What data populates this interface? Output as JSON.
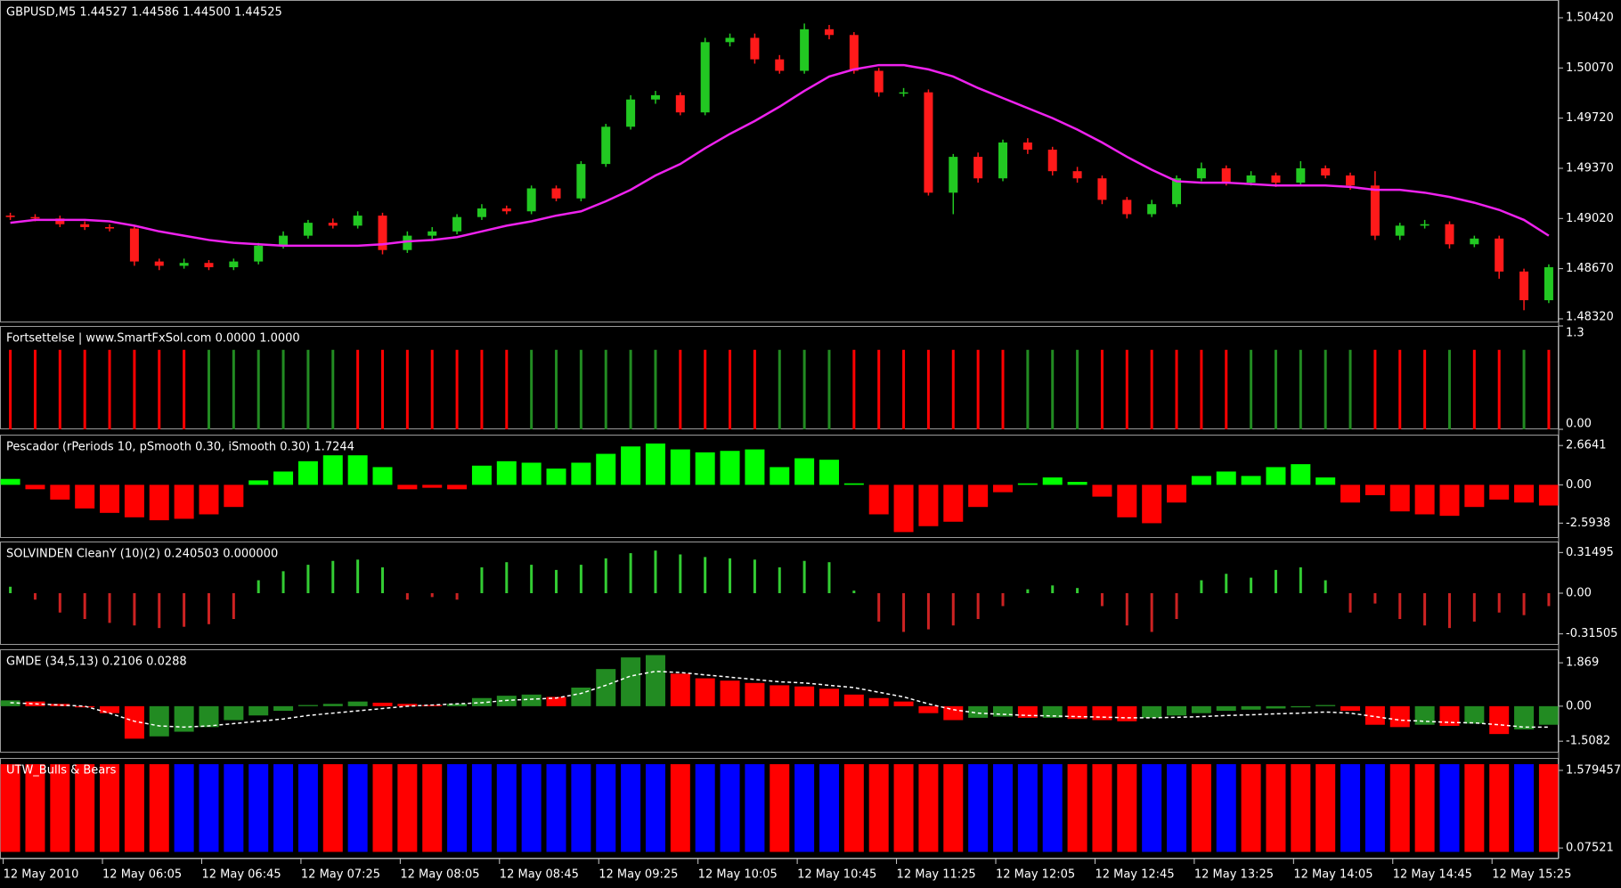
{
  "chart_data": [
    {
      "type": "candlestick",
      "title": "GBPUSD,M5  1.44527 1.44586 1.44500 1.44525",
      "up_color": "#22c822",
      "down_color": "#ff1a1a",
      "open": [
        1.4904,
        1.4903,
        1.4902,
        1.4898,
        1.4896,
        1.4895,
        1.4872,
        1.4869,
        1.4871,
        1.4868,
        1.4872,
        1.4883,
        1.489,
        1.4899,
        1.4897,
        1.4904,
        1.488,
        1.489,
        1.4893,
        1.4903,
        1.4909,
        1.4907,
        1.4923,
        1.4916,
        1.494,
        1.4966,
        1.4985,
        1.4988,
        1.4976,
        1.5025,
        1.5028,
        1.5013,
        1.5005,
        1.5034,
        1.503,
        1.5005,
        1.499,
        1.499,
        1.492,
        1.4945,
        1.493,
        1.4955,
        1.495,
        1.4935,
        1.493,
        1.4915,
        1.4905,
        1.4912,
        1.493,
        1.4937,
        1.4927,
        1.4932,
        1.4927,
        1.4937,
        1.4932,
        1.4925,
        1.489,
        1.4897,
        1.4898,
        1.4884,
        1.4888,
        1.4865,
        1.4845
      ],
      "high": [
        1.4906,
        1.4905,
        1.4904,
        1.49,
        1.4898,
        1.4897,
        1.4874,
        1.4874,
        1.4873,
        1.4874,
        1.4885,
        1.4893,
        1.4901,
        1.4902,
        1.4907,
        1.4906,
        1.4893,
        1.4896,
        1.4905,
        1.4912,
        1.4911,
        1.4925,
        1.4925,
        1.4942,
        1.4968,
        1.4988,
        1.4991,
        1.499,
        1.5028,
        1.5031,
        1.5031,
        1.5016,
        1.5038,
        1.5037,
        1.5032,
        1.5007,
        1.4993,
        1.4992,
        1.4947,
        1.4948,
        1.4957,
        1.4958,
        1.4952,
        1.4938,
        1.4932,
        1.4917,
        1.4915,
        1.4932,
        1.4941,
        1.4939,
        1.4935,
        1.4934,
        1.4942,
        1.4939,
        1.4934,
        1.4935,
        1.4899,
        1.4901,
        1.49,
        1.489,
        1.489,
        1.4867,
        1.487
      ],
      "low": [
        1.4901,
        1.49,
        1.4896,
        1.4894,
        1.4893,
        1.4869,
        1.4866,
        1.4867,
        1.4866,
        1.4866,
        1.487,
        1.4881,
        1.4888,
        1.4895,
        1.4895,
        1.4877,
        1.4878,
        1.4887,
        1.4891,
        1.4901,
        1.4905,
        1.4905,
        1.4914,
        1.4914,
        1.4938,
        1.4964,
        1.4982,
        1.4974,
        1.4974,
        1.5022,
        1.501,
        1.5003,
        1.5003,
        1.5027,
        1.5003,
        1.4987,
        1.4987,
        1.4918,
        1.4905,
        1.4927,
        1.4928,
        1.4947,
        1.4932,
        1.4927,
        1.4912,
        1.4902,
        1.4903,
        1.491,
        1.4928,
        1.4925,
        1.4925,
        1.4924,
        1.4925,
        1.493,
        1.4922,
        1.4887,
        1.4887,
        1.4895,
        1.4881,
        1.4882,
        1.486,
        1.4838,
        1.4843
      ],
      "close": [
        1.4903,
        1.4902,
        1.4898,
        1.4896,
        1.4895,
        1.4872,
        1.4869,
        1.4871,
        1.4868,
        1.4872,
        1.4883,
        1.489,
        1.4899,
        1.4897,
        1.4904,
        1.488,
        1.489,
        1.4893,
        1.4903,
        1.4909,
        1.4907,
        1.4923,
        1.4916,
        1.494,
        1.4966,
        1.4985,
        1.4988,
        1.4976,
        1.5025,
        1.5028,
        1.5013,
        1.5005,
        1.5034,
        1.503,
        1.5005,
        1.499,
        1.499,
        1.492,
        1.4945,
        1.493,
        1.4955,
        1.495,
        1.4935,
        1.493,
        1.4915,
        1.4905,
        1.4912,
        1.493,
        1.4937,
        1.4927,
        1.4932,
        1.4927,
        1.4937,
        1.4932,
        1.4925,
        1.489,
        1.4897,
        1.4898,
        1.4884,
        1.4888,
        1.4865,
        1.4845,
        1.4868
      ],
      "ma": {
        "color": "#ee22ee",
        "values": [
          1.4899,
          1.4901,
          1.4901,
          1.4901,
          1.49,
          1.4897,
          1.4893,
          1.489,
          1.4887,
          1.4885,
          1.4884,
          1.4883,
          1.4883,
          1.4883,
          1.4883,
          1.4884,
          1.4886,
          1.4887,
          1.4889,
          1.4893,
          1.4897,
          1.49,
          1.4904,
          1.4907,
          1.4914,
          1.4922,
          1.4932,
          1.494,
          1.4951,
          1.4961,
          1.497,
          1.498,
          1.4991,
          1.5001,
          1.5006,
          1.5009,
          1.5009,
          1.5006,
          1.5001,
          1.4993,
          1.4986,
          1.4979,
          1.4972,
          1.4964,
          1.4955,
          1.4945,
          1.4936,
          1.4928,
          1.4927,
          1.4927,
          1.4926,
          1.4925,
          1.4925,
          1.4925,
          1.4924,
          1.4922,
          1.4922,
          1.492,
          1.4917,
          1.4913,
          1.4908,
          1.4901,
          1.489
        ]
      },
      "ylim": [
        1.48295,
        1.50544
      ],
      "yticks": [
        {
          "value": 1.5042,
          "label": "1.50420"
        },
        {
          "value": 1.5007,
          "label": "1.50070"
        },
        {
          "value": 1.4972,
          "label": "1.49720"
        },
        {
          "value": 1.4937,
          "label": "1.49370"
        },
        {
          "value": 1.4902,
          "label": "1.49020"
        },
        {
          "value": 1.4867,
          "label": "1.48670"
        },
        {
          "value": 1.4832,
          "label": "1.48320"
        }
      ]
    },
    {
      "type": "bar",
      "title": "Fortsettelse | www.SmartFxSol.com  0.0000 1.0000",
      "values": [
        1,
        1,
        1,
        1,
        1,
        1,
        1,
        1,
        1,
        1,
        1,
        1,
        1,
        1,
        1,
        1,
        1,
        1,
        1,
        1,
        1,
        1,
        1,
        1,
        1,
        1,
        1,
        1,
        1,
        1,
        1,
        1,
        1,
        1,
        1,
        1,
        1,
        1,
        1,
        1,
        1,
        1,
        1,
        1,
        1,
        1,
        1,
        1,
        1,
        1,
        1,
        1,
        1,
        1,
        1,
        1,
        1,
        1,
        1,
        1,
        1,
        1,
        1
      ],
      "colors": [
        "#ff0000",
        "#ff0000",
        "#ff0000",
        "#ff0000",
        "#ff0000",
        "#ff0000",
        "#ff0000",
        "#ff0000",
        "#228b22",
        "#228b22",
        "#228b22",
        "#228b22",
        "#228b22",
        "#228b22",
        "#ff0000",
        "#ff0000",
        "#ff0000",
        "#ff0000",
        "#ff0000",
        "#ff0000",
        "#ff0000",
        "#228b22",
        "#228b22",
        "#228b22",
        "#228b22",
        "#228b22",
        "#228b22",
        "#ff0000",
        "#ff0000",
        "#ff0000",
        "#ff0000",
        "#228b22",
        "#228b22",
        "#228b22",
        "#ff0000",
        "#ff0000",
        "#ff0000",
        "#ff0000",
        "#ff0000",
        "#ff0000",
        "#ff0000",
        "#228b22",
        "#228b22",
        "#228b22",
        "#ff0000",
        "#ff0000",
        "#ff0000",
        "#ff0000",
        "#ff0000",
        "#ff0000",
        "#228b22",
        "#228b22",
        "#228b22",
        "#228b22",
        "#228b22",
        "#ff0000",
        "#ff0000",
        "#ff0000",
        "#228b22",
        "#ff0000",
        "#ff0000",
        "#228b22",
        "#ff0000"
      ],
      "thin": true,
      "ylim": [
        0,
        1.3
      ],
      "yticks": [
        1.3,
        {
          "value": 0,
          "label": "0.00"
        }
      ]
    },
    {
      "type": "bar",
      "title": "Pescador  (rPeriods 10, pSmooth 0.30, iSmooth 0.30)  1.7244",
      "positive_color": "#00ff00",
      "negative_color": "#ff0000",
      "values": [
        0.4,
        -0.3,
        -1.0,
        -1.6,
        -1.9,
        -2.2,
        -2.4,
        -2.3,
        -2.0,
        -1.5,
        0.3,
        0.9,
        1.6,
        2.0,
        2.0,
        1.2,
        -0.3,
        -0.2,
        -0.3,
        1.3,
        1.6,
        1.5,
        1.1,
        1.5,
        2.1,
        2.6,
        2.8,
        2.4,
        2.2,
        2.3,
        2.4,
        1.2,
        1.8,
        1.7,
        0.1,
        -2.0,
        -3.2,
        -2.8,
        -2.5,
        -1.5,
        -0.5,
        0.1,
        0.5,
        0.2,
        -0.8,
        -2.2,
        -2.6,
        -1.2,
        0.6,
        0.9,
        0.6,
        1.2,
        1.4,
        0.5,
        -1.2,
        -0.7,
        -1.8,
        -2.0,
        -2.1,
        -1.5,
        -1.0,
        -1.2,
        -1.4
      ],
      "ylim": [
        -3.6,
        3.4
      ],
      "yticks": [
        2.6641,
        {
          "value": 0,
          "label": "0.00"
        },
        -2.5938
      ]
    },
    {
      "type": "bar",
      "title": "SOLVINDEN CleanY (10)(2) 0.240503 0.000000",
      "positive_color": "#33cc33",
      "negative_color": "#cc2222",
      "thin": true,
      "values": [
        0.05,
        -0.05,
        -0.15,
        -0.2,
        -0.23,
        -0.25,
        -0.27,
        -0.26,
        -0.24,
        -0.2,
        0.1,
        0.17,
        0.22,
        0.25,
        0.26,
        0.2,
        -0.05,
        -0.03,
        -0.05,
        0.2,
        0.24,
        0.22,
        0.18,
        0.22,
        0.27,
        0.31,
        0.33,
        0.3,
        0.28,
        0.27,
        0.26,
        0.2,
        0.25,
        0.24,
        0.02,
        -0.22,
        -0.3,
        -0.28,
        -0.25,
        -0.2,
        -0.1,
        0.03,
        0.06,
        0.04,
        -0.1,
        -0.25,
        -0.3,
        -0.2,
        0.1,
        0.15,
        0.12,
        0.18,
        0.2,
        0.1,
        -0.15,
        -0.08,
        -0.2,
        -0.25,
        -0.27,
        -0.22,
        -0.15,
        -0.17,
        -0.1
      ],
      "ylim": [
        -0.4,
        0.4
      ],
      "yticks": [
        0.31495,
        {
          "value": 0,
          "label": "0.00"
        },
        -0.31505
      ]
    },
    {
      "type": "bar",
      "title": "GMDE (34,5,13) 0.2106 0.0288",
      "rising_color": "#228b22",
      "falling_color": "#ff0000",
      "values": [
        0.25,
        0.2,
        0.1,
        -0.05,
        -0.3,
        -1.4,
        -1.3,
        -1.1,
        -0.9,
        -0.6,
        -0.4,
        -0.2,
        0.05,
        0.1,
        0.2,
        0.15,
        0.1,
        0.05,
        0.1,
        0.35,
        0.45,
        0.5,
        0.4,
        0.8,
        1.6,
        2.1,
        2.2,
        1.4,
        1.2,
        1.1,
        1.0,
        0.9,
        0.85,
        0.75,
        0.5,
        0.35,
        0.2,
        -0.3,
        -0.6,
        -0.5,
        -0.45,
        -0.5,
        -0.5,
        -0.55,
        -0.6,
        -0.65,
        -0.5,
        -0.4,
        -0.3,
        -0.2,
        -0.15,
        -0.1,
        -0.05,
        0.05,
        -0.2,
        -0.8,
        -0.9,
        -0.8,
        -0.85,
        -0.75,
        -1.2,
        -1.0,
        -0.8
      ],
      "signal": {
        "color": "#ffffff",
        "dashed": true,
        "values": [
          0.15,
          0.1,
          0.05,
          0.0,
          -0.3,
          -0.65,
          -0.85,
          -0.9,
          -0.85,
          -0.75,
          -0.65,
          -0.55,
          -0.4,
          -0.3,
          -0.2,
          -0.1,
          0.0,
          0.05,
          0.1,
          0.15,
          0.25,
          0.3,
          0.35,
          0.55,
          0.9,
          1.3,
          1.5,
          1.45,
          1.35,
          1.25,
          1.15,
          1.05,
          1.0,
          0.9,
          0.8,
          0.6,
          0.4,
          0.1,
          -0.15,
          -0.3,
          -0.35,
          -0.4,
          -0.42,
          -0.45,
          -0.47,
          -0.5,
          -0.5,
          -0.48,
          -0.45,
          -0.4,
          -0.37,
          -0.33,
          -0.3,
          -0.25,
          -0.3,
          -0.45,
          -0.6,
          -0.65,
          -0.7,
          -0.72,
          -0.8,
          -0.9,
          -0.9
        ]
      },
      "ylim": [
        -2.0,
        2.45
      ],
      "yticks": [
        1.869,
        {
          "value": 0,
          "label": "0.00"
        },
        -1.5082
      ]
    },
    {
      "type": "bar",
      "title": "UTW_Bulls & Bears",
      "values": [
        1.7,
        1.7,
        1.7,
        1.7,
        1.7,
        1.7,
        1.7,
        1.7,
        1.7,
        1.7,
        1.7,
        1.7,
        1.7,
        1.7,
        1.7,
        1.7,
        1.7,
        1.7,
        1.7,
        1.7,
        1.7,
        1.7,
        1.7,
        1.7,
        1.7,
        1.7,
        1.7,
        1.7,
        1.7,
        1.7,
        1.7,
        1.7,
        1.7,
        1.7,
        1.7,
        1.7,
        1.7,
        1.7,
        1.7,
        1.7,
        1.7,
        1.7,
        1.7,
        1.7,
        1.7,
        1.7,
        1.7,
        1.7,
        1.7,
        1.7,
        1.7,
        1.7,
        1.7,
        1.7,
        1.7,
        1.7,
        1.7,
        1.7,
        1.7,
        1.7,
        1.7,
        1.7,
        1.7
      ],
      "colors": [
        "#ff0000",
        "#ff0000",
        "#ff0000",
        "#ff0000",
        "#ff0000",
        "#ff0000",
        "#ff0000",
        "#0000ff",
        "#0000ff",
        "#0000ff",
        "#0000ff",
        "#0000ff",
        "#0000ff",
        "#ff0000",
        "#0000ff",
        "#ff0000",
        "#ff0000",
        "#ff0000",
        "#0000ff",
        "#0000ff",
        "#0000ff",
        "#0000ff",
        "#0000ff",
        "#0000ff",
        "#0000ff",
        "#0000ff",
        "#0000ff",
        "#ff0000",
        "#0000ff",
        "#0000ff",
        "#0000ff",
        "#ff0000",
        "#0000ff",
        "#0000ff",
        "#ff0000",
        "#ff0000",
        "#ff0000",
        "#ff0000",
        "#ff0000",
        "#0000ff",
        "#0000ff",
        "#0000ff",
        "#0000ff",
        "#ff0000",
        "#ff0000",
        "#ff0000",
        "#0000ff",
        "#0000ff",
        "#ff0000",
        "#0000ff",
        "#ff0000",
        "#ff0000",
        "#ff0000",
        "#ff0000",
        "#0000ff",
        "#0000ff",
        "#ff0000",
        "#ff0000",
        "#0000ff",
        "#ff0000",
        "#ff0000",
        "#0000ff",
        "#ff0000"
      ],
      "categories": [
        "12 May 2010",
        null,
        null,
        null,
        "12 May 06:05",
        null,
        null,
        null,
        "12 May 06:45",
        null,
        null,
        null,
        "12 May 07:25",
        null,
        null,
        null,
        "12 May 08:05",
        null,
        null,
        null,
        "12 May 08:45",
        null,
        null,
        null,
        "12 May 09:25",
        null,
        null,
        null,
        "12 May 10:05",
        null,
        null,
        null,
        "12 May 10:45",
        null,
        null,
        null,
        "12 May 11:25",
        null,
        null,
        null,
        "12 May 12:05",
        null,
        null,
        null,
        "12 May 12:45",
        null,
        null,
        null,
        "12 May 13:25",
        null,
        null,
        null,
        "12 May 14:05",
        null,
        null,
        null,
        "12 May 14:45",
        null,
        null,
        null,
        "12 May 15:25",
        null,
        null
      ],
      "ylim": [
        -0.13,
        1.82
      ],
      "yticks": [
        1.579457,
        0.07521
      ]
    }
  ]
}
